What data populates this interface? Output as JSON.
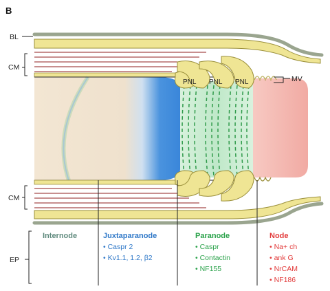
{
  "panel_letter": "B",
  "side_labels": {
    "bl": "BL",
    "cm_top": "CM",
    "cm_bottom": "CM",
    "ep": "EP",
    "mv": "MV"
  },
  "pnl_labels": [
    "PNL",
    "PNL",
    "PNL"
  ],
  "columns": {
    "internode": {
      "title": "Internode",
      "color": "#5f8a7d",
      "items": []
    },
    "juxtaparanode": {
      "title": "Juxtaparanode",
      "color": "#2f78c8",
      "items": [
        "• Caspr 2",
        "• Kv1.1, 1.2, β2"
      ]
    },
    "paranode": {
      "title": "Paranode",
      "color": "#2aa24a",
      "items": [
        "• Caspr",
        "• Contactin",
        "• NF155"
      ]
    },
    "node": {
      "title": "Node",
      "color": "#e23a3a",
      "items": [
        "• Na+ ch",
        "• ank G",
        "• NrCAM",
        "• NF186"
      ]
    }
  },
  "colors": {
    "myelin": "#efe594",
    "myelin_edge": "#9a8f3a",
    "axon": "#f5e6cf",
    "juxta_blue": "#3a8ee0",
    "paranode_green": "#bfe8c9",
    "node_pink": "#f3b3ad",
    "bl_gray": "#9aa58f"
  }
}
